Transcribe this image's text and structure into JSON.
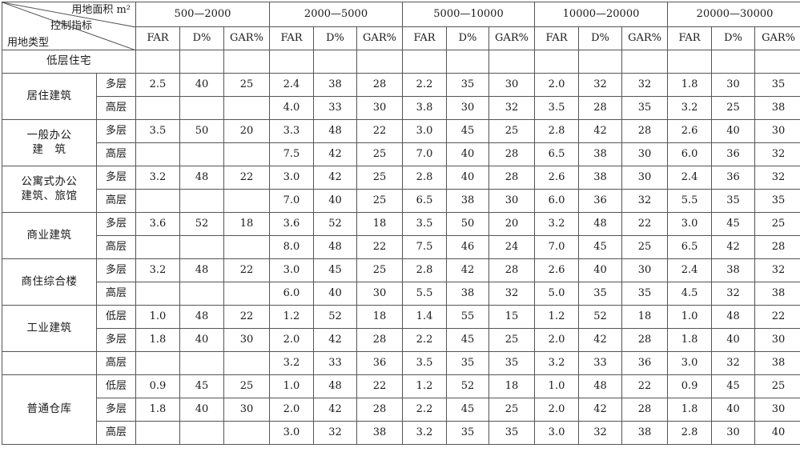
{
  "header": {
    "area_label": "用地面积 m²",
    "indicator_label": "控制指标",
    "type_label": "用地类型",
    "ranges": [
      "500—2000",
      "2000—5000",
      "5000—10000",
      "10000—20000",
      "20000—30000"
    ],
    "metrics": [
      "FAR",
      "D%",
      "GAR%"
    ]
  },
  "rows": [
    {
      "type": "低层住宅",
      "sub": "",
      "values": [
        "",
        "",
        "",
        "",
        "",
        "",
        "",
        "",
        "",
        "",
        "",
        "",
        "",
        "",
        ""
      ]
    },
    {
      "type": "居住建筑",
      "sub": "多层",
      "values": [
        "2.5",
        "40",
        "25",
        "2.4",
        "38",
        "28",
        "2.2",
        "35",
        "30",
        "2.0",
        "32",
        "32",
        "1.8",
        "30",
        "35"
      ]
    },
    {
      "type": "",
      "sub": "高层",
      "values": [
        "",
        "",
        "",
        "4.0",
        "33",
        "30",
        "3.8",
        "30",
        "32",
        "3.5",
        "28",
        "35",
        "3.2",
        "25",
        "38"
      ]
    },
    {
      "type": "一般办公建　筑",
      "sub": "多层",
      "values": [
        "3.5",
        "50",
        "20",
        "3.3",
        "48",
        "22",
        "3.0",
        "45",
        "25",
        "2.8",
        "42",
        "28",
        "2.6",
        "40",
        "30"
      ]
    },
    {
      "type": "",
      "sub": "高层",
      "values": [
        "",
        "",
        "",
        "7.5",
        "42",
        "25",
        "7.0",
        "40",
        "28",
        "6.5",
        "38",
        "30",
        "6.0",
        "36",
        "32"
      ]
    },
    {
      "type": "公寓式办公建筑、旅馆",
      "sub": "多层",
      "values": [
        "3.2",
        "48",
        "22",
        "3.0",
        "42",
        "25",
        "2.8",
        "40",
        "28",
        "2.6",
        "38",
        "30",
        "2.4",
        "36",
        "32"
      ]
    },
    {
      "type": "",
      "sub": "高层",
      "values": [
        "",
        "",
        "",
        "7.0",
        "40",
        "25",
        "6.5",
        "38",
        "30",
        "6.0",
        "36",
        "32",
        "5.5",
        "35",
        "35"
      ]
    },
    {
      "type": "商业建筑",
      "sub": "多层",
      "values": [
        "3.6",
        "52",
        "18",
        "3.6",
        "52",
        "18",
        "3.5",
        "50",
        "20",
        "3.2",
        "48",
        "22",
        "3.0",
        "45",
        "25"
      ]
    },
    {
      "type": "",
      "sub": "高层",
      "values": [
        "",
        "",
        "",
        "8.0",
        "48",
        "22",
        "7.5",
        "46",
        "24",
        "7.0",
        "45",
        "25",
        "6.5",
        "42",
        "28"
      ]
    },
    {
      "type": "商住综合楼",
      "sub": "多层",
      "values": [
        "3.2",
        "48",
        "22",
        "3.0",
        "45",
        "25",
        "2.8",
        "42",
        "28",
        "2.6",
        "40",
        "30",
        "2.4",
        "38",
        "32"
      ]
    },
    {
      "type": "",
      "sub": "高层",
      "values": [
        "",
        "",
        "",
        "6.0",
        "40",
        "30",
        "5.5",
        "38",
        "32",
        "5.0",
        "35",
        "35",
        "4.5",
        "32",
        "38"
      ]
    },
    {
      "type": "工业建筑",
      "sub": "低层",
      "values": [
        "1.0",
        "48",
        "22",
        "1.2",
        "52",
        "18",
        "1.4",
        "55",
        "15",
        "1.2",
        "52",
        "18",
        "1.0",
        "48",
        "22"
      ]
    },
    {
      "type": "",
      "sub": "多层",
      "values": [
        "1.8",
        "40",
        "30",
        "2.0",
        "42",
        "28",
        "2.2",
        "45",
        "25",
        "2.0",
        "42",
        "28",
        "1.8",
        "40",
        "30"
      ]
    },
    {
      "type": "",
      "sub": "高层",
      "values": [
        "",
        "",
        "",
        "3.2",
        "33",
        "36",
        "3.5",
        "35",
        "35",
        "3.2",
        "33",
        "36",
        "3.0",
        "32",
        "38"
      ]
    },
    {
      "type": "普通仓库",
      "sub": "低层",
      "values": [
        "0.9",
        "45",
        "25",
        "1.0",
        "48",
        "22",
        "1.2",
        "52",
        "18",
        "1.0",
        "48",
        "22",
        "0.9",
        "45",
        "25"
      ]
    },
    {
      "type": "",
      "sub": "多层",
      "values": [
        "1.8",
        "40",
        "30",
        "2.0",
        "42",
        "28",
        "2.2",
        "45",
        "25",
        "2.0",
        "42",
        "28",
        "1.8",
        "40",
        "30"
      ]
    },
    {
      "type": "",
      "sub": "高层",
      "values": [
        "",
        "",
        "",
        "3.0",
        "32",
        "38",
        "3.2",
        "35",
        "35",
        "3.0",
        "32",
        "38",
        "2.8",
        "30",
        "40"
      ]
    }
  ]
}
